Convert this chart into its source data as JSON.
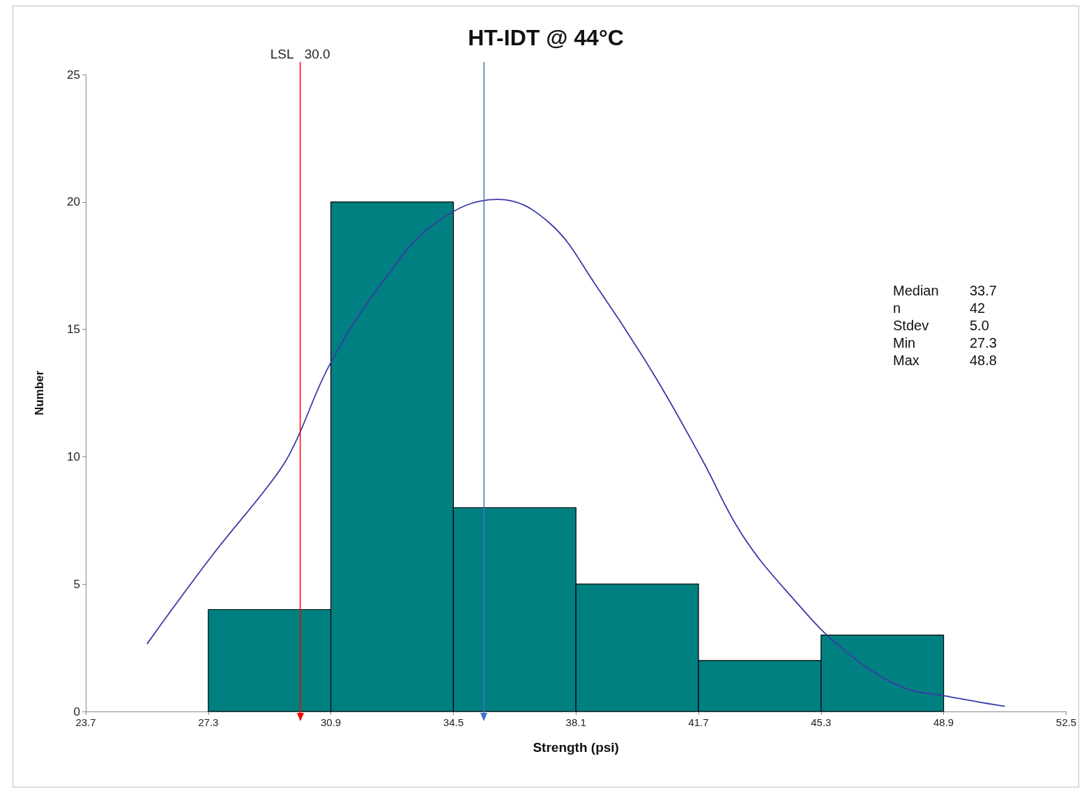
{
  "chart_data": {
    "type": "histogram",
    "title": "HT-IDT @ 44°C",
    "xlabel": "Strength (psi)",
    "ylabel": "Number",
    "bins": [
      27.3,
      30.9,
      34.5,
      38.1,
      41.7,
      45.3,
      48.9
    ],
    "values": [
      4,
      20,
      8,
      5,
      2,
      3
    ],
    "color": "#008080",
    "series": [
      {
        "type": "line",
        "color": "#3a3aa8",
        "x": [
          25.5,
          27.4,
          29.2,
          29.8,
          30.9,
          32.5,
          34.0,
          35.8,
          37.3,
          38.7,
          40.4,
          41.8,
          43.0,
          44.5,
          45.9,
          47.6,
          49.0,
          50.7
        ],
        "values": [
          2.65,
          6.1,
          9.1,
          10.4,
          13.7,
          17.0,
          19.2,
          20.1,
          19.2,
          16.7,
          13.2,
          9.9,
          6.9,
          4.4,
          2.5,
          1.0,
          0.6,
          0.2
        ]
      }
    ],
    "xlim": [
      23.7,
      52.5
    ],
    "xticks": [
      23.7,
      27.3,
      30.9,
      34.5,
      38.1,
      41.7,
      45.3,
      48.9,
      52.5
    ],
    "ylim": [
      0,
      25
    ],
    "yticks": [
      0,
      5,
      10,
      15,
      20,
      25
    ],
    "ref_lines": [
      {
        "axis": "x",
        "value": 30.0,
        "label": "LSL   30.0",
        "color": "#ff0000"
      },
      {
        "axis": "x",
        "value": 35.4,
        "color": "#4472c4"
      }
    ],
    "annotations": [
      "Median",
      "33.7",
      "n",
      "42",
      "Stdev",
      "5.0",
      "Min",
      "27.3",
      "Max",
      "48.8"
    ],
    "grid": false,
    "marker": "none"
  }
}
